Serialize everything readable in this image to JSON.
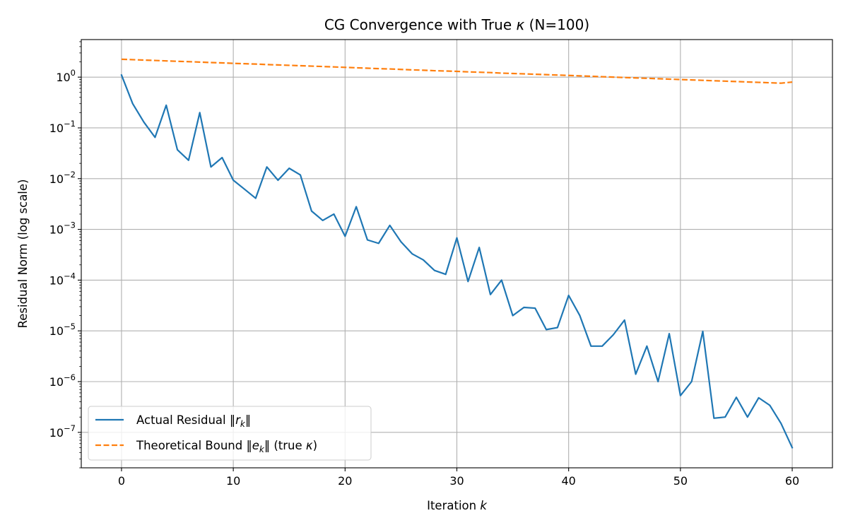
{
  "chart_data": {
    "type": "line",
    "title": "CG Convergence with True κ (N=100)",
    "xlabel": "Iteration k",
    "ylabel": "Residual Norm (log scale)",
    "yscale": "log",
    "xlim": [
      -3.6,
      63.6
    ],
    "ylim": [
      2e-08,
      5.5
    ],
    "grid": true,
    "legend_position": "lower-left",
    "x_ticks": [
      0,
      10,
      20,
      30,
      40,
      50,
      60
    ],
    "x_tick_labels": [
      "0",
      "10",
      "20",
      "30",
      "40",
      "50",
      "60"
    ],
    "y_ticks": [
      1,
      0.1,
      0.01,
      0.001,
      0.0001,
      1e-05,
      1e-06,
      1e-07
    ],
    "y_tick_labels": [
      {
        "base": "10",
        "exp": "0"
      },
      {
        "base": "10",
        "exp": "−1"
      },
      {
        "base": "10",
        "exp": "−2"
      },
      {
        "base": "10",
        "exp": "−3"
      },
      {
        "base": "10",
        "exp": "−4"
      },
      {
        "base": "10",
        "exp": "−5"
      },
      {
        "base": "10",
        "exp": "−6"
      },
      {
        "base": "10",
        "exp": "−7"
      }
    ],
    "x": [
      0,
      1,
      2,
      3,
      4,
      5,
      6,
      7,
      8,
      9,
      10,
      11,
      12,
      13,
      14,
      15,
      16,
      17,
      18,
      19,
      20,
      21,
      22,
      23,
      24,
      25,
      26,
      27,
      28,
      29,
      30,
      31,
      32,
      33,
      34,
      35,
      36,
      37,
      38,
      39,
      40,
      41,
      42,
      43,
      44,
      45,
      46,
      47,
      48,
      49,
      50,
      51,
      52,
      53,
      54,
      55,
      56,
      57,
      58,
      59,
      60
    ],
    "series": [
      {
        "name": "Actual Residual ‖r_k‖",
        "label_parts": {
          "prefix": "Actual Residual ‖",
          "var": "r",
          "sub": "k",
          "suffix": "‖"
        },
        "color": "#1f77b4",
        "style": "solid",
        "values": [
          1.1,
          0.3,
          0.13,
          0.065,
          0.28,
          0.037,
          0.023,
          0.2,
          0.017,
          0.026,
          0.0093,
          0.0062,
          0.0041,
          0.017,
          0.0093,
          0.016,
          0.0118,
          0.0023,
          0.0015,
          0.002,
          0.00073,
          0.0028,
          0.00062,
          0.00053,
          0.0012,
          0.00057,
          0.00033,
          0.00025,
          0.000155,
          0.00013,
          0.00068,
          9.4e-05,
          0.00044,
          5.2e-05,
          0.0001,
          2e-05,
          2.9e-05,
          2.8e-05,
          1.06e-05,
          1.16e-05,
          5e-05,
          2e-05,
          5e-06,
          5e-06,
          8.4e-06,
          1.63e-05,
          1.4e-06,
          5e-06,
          1e-06,
          8.8e-06,
          5.3e-07,
          1e-06,
          9.8e-06,
          1.9e-07,
          2e-07,
          4.9e-07,
          2e-07,
          4.8e-07,
          3.4e-07,
          1.5e-07,
          5e-08
        ]
      },
      {
        "name": "Theoretical Bound ‖e_k‖ (true κ)",
        "label_parts": {
          "prefix": "Theoretical Bound ‖",
          "var": "e",
          "sub": "k",
          "suffix": "‖ (true κ)"
        },
        "color": "#ff7f0e",
        "style": "dashed",
        "values": [
          2.25,
          2.21,
          2.17,
          2.13,
          2.09,
          2.05,
          2.02,
          1.98,
          1.94,
          1.91,
          1.87,
          1.84,
          1.81,
          1.77,
          1.74,
          1.71,
          1.68,
          1.65,
          1.62,
          1.59,
          1.56,
          1.53,
          1.5,
          1.47,
          1.45,
          1.42,
          1.39,
          1.37,
          1.34,
          1.32,
          1.3,
          1.27,
          1.25,
          1.23,
          1.2,
          1.18,
          1.16,
          1.14,
          1.12,
          1.1,
          1.08,
          1.06,
          1.04,
          1.02,
          1.0,
          0.983,
          0.965,
          0.948,
          0.931,
          0.914,
          0.897,
          0.881,
          0.865,
          0.849,
          0.834,
          0.819,
          0.804,
          0.789,
          0.775,
          0.761,
          0.8
        ]
      }
    ]
  }
}
